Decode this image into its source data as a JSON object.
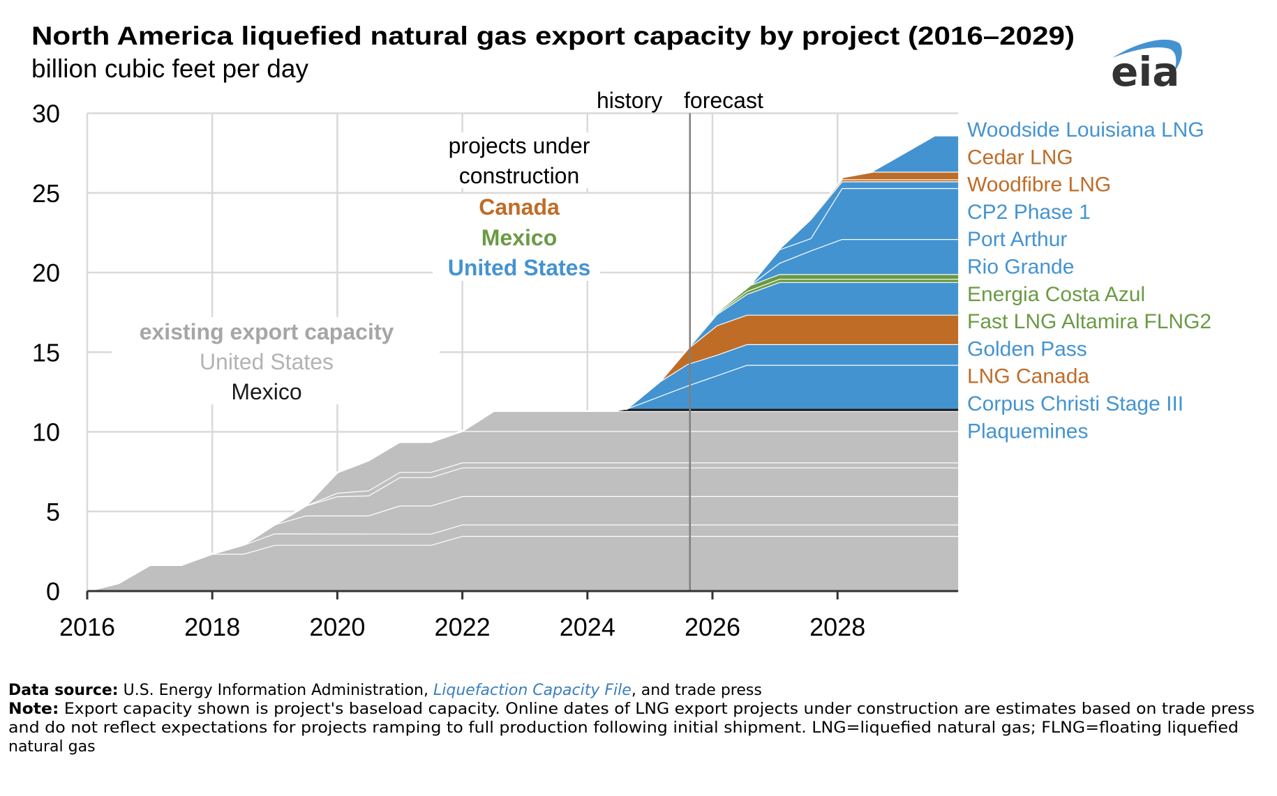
{
  "header": {
    "title": "North America liquefied natural gas export capacity by project (2016–2029)",
    "subtitle": "billion cubic feet per day",
    "logo": "eia"
  },
  "annotations": {
    "history": "history",
    "forecast": "forecast",
    "under_construction_line1": "projects under",
    "under_construction_line2": "construction",
    "canada": "Canada",
    "mexico": "Mexico",
    "united_states": "United States",
    "existing_line1": "existing export capacity",
    "existing_us": "United States",
    "existing_mexico": "Mexico"
  },
  "footer": {
    "source_label": "Data source:",
    "source_text_1": " U.S. Energy Information Administration, ",
    "source_link": "Liquefaction Capacity File",
    "source_text_2": ", and trade press",
    "note_label": "Note:",
    "note_line1": " Export capacity shown is project's baseload capacity. Online dates of LNG export projects under construction are estimates based on trade press",
    "note_line2": "and do not reflect expectations for projects ramping to full production following initial shipment. LNG=liquefied natural gas; FLNG=floating liquefied",
    "note_line3": "natural gas"
  },
  "colors": {
    "existing_us": "#bfbfbf",
    "existing_mexico": "#1a1a1a",
    "united_states": "#4493d1",
    "canada": "#bf6c27",
    "mexico": "#6a9a44",
    "existing_label": "#a6a6a6",
    "existing_us_label": "#b3b3b3"
  },
  "chart_data": {
    "type": "area",
    "stacked": true,
    "title": "North America liquefied natural gas export capacity by project (2016–2029)",
    "ylabel": "billion cubic feet per day",
    "xlabel": "",
    "xlim": [
      2016,
      2029.93
    ],
    "ylim": [
      0,
      30
    ],
    "x_ticks": [
      2016,
      2018,
      2020,
      2022,
      2024,
      2026,
      2028
    ],
    "x_tick_labels": [
      "2016",
      "2018",
      "2020",
      "2022",
      "2024",
      "2026",
      "2028"
    ],
    "y_ticks": [
      0,
      5,
      10,
      15,
      20,
      25,
      30
    ],
    "y_tick_labels": [
      "0",
      "5",
      "10",
      "15",
      "20",
      "25",
      "30"
    ],
    "grid": true,
    "history_forecast_divider_year": 2025.64,
    "value_note": "series points give cumulative stacked top (bcf/d) at each year",
    "series": [
      {
        "name": "Existing US 1",
        "group": "existing_us",
        "legend": false,
        "top": [
          [
            2016,
            0
          ],
          [
            2016.5,
            0.49
          ],
          [
            2017,
            1.63
          ],
          [
            2017.5,
            1.63
          ],
          [
            2018,
            2.34
          ],
          [
            2018.5,
            2.34
          ],
          [
            2019,
            2.9
          ],
          [
            2021.5,
            2.9
          ],
          [
            2022,
            3.46
          ],
          [
            2029.93,
            3.46
          ]
        ]
      },
      {
        "name": "Existing US 2",
        "group": "existing_us",
        "legend": false,
        "top": [
          [
            2018,
            2.34
          ],
          [
            2018.5,
            2.9
          ],
          [
            2019,
            3.62
          ],
          [
            2021.5,
            3.6
          ],
          [
            2022,
            4.18
          ],
          [
            2029.93,
            4.18
          ]
        ]
      },
      {
        "name": "Existing US 3",
        "group": "existing_us",
        "legend": false,
        "top": [
          [
            2018.5,
            2.9
          ],
          [
            2019,
            4.18
          ],
          [
            2019.5,
            4.75
          ],
          [
            2020.5,
            4.75
          ],
          [
            2021,
            5.37
          ],
          [
            2021.5,
            5.37
          ],
          [
            2022,
            5.96
          ],
          [
            2029.93,
            5.96
          ]
        ]
      },
      {
        "name": "Existing US 4",
        "group": "existing_us",
        "legend": false,
        "top": [
          [
            2019,
            4.18
          ],
          [
            2019.5,
            5.37
          ],
          [
            2020,
            5.95
          ],
          [
            2020.5,
            6.0
          ],
          [
            2021,
            7.15
          ],
          [
            2021.5,
            7.15
          ],
          [
            2022,
            7.76
          ],
          [
            2029.93,
            7.76
          ]
        ]
      },
      {
        "name": "Existing US 5",
        "group": "existing_us",
        "legend": false,
        "top": [
          [
            2019.5,
            5.37
          ],
          [
            2020,
            6.17
          ],
          [
            2020.5,
            6.32
          ],
          [
            2021,
            7.48
          ],
          [
            2021.5,
            7.48
          ],
          [
            2022,
            8.08
          ],
          [
            2029.93,
            8.08
          ]
        ]
      },
      {
        "name": "Existing US 6",
        "group": "existing_us",
        "legend": false,
        "top": [
          [
            2019.5,
            5.37
          ],
          [
            2020,
            7.45
          ],
          [
            2020.5,
            8.2
          ],
          [
            2021,
            9.37
          ],
          [
            2021.5,
            9.37
          ],
          [
            2022,
            10.05
          ],
          [
            2029.93,
            10.05
          ]
        ]
      },
      {
        "name": "Existing US 7",
        "group": "existing_us",
        "legend": false,
        "top": [
          [
            2022,
            10.05
          ],
          [
            2022.5,
            11.3
          ],
          [
            2029.93,
            11.3
          ]
        ]
      },
      {
        "name": "Existing Mexico",
        "group": "existing_mexico",
        "legend": false,
        "top": [
          [
            2024.4,
            11.3
          ],
          [
            2024.6,
            11.45
          ],
          [
            2029.93,
            11.45
          ]
        ]
      },
      {
        "name": "Plaquemines",
        "group": "united_states",
        "legend": true,
        "top": [
          [
            2024.63,
            11.45
          ],
          [
            2025.63,
            12.94
          ],
          [
            2026.55,
            14.2
          ],
          [
            2029.93,
            14.2
          ]
        ]
      },
      {
        "name": "Corpus Christi Stage III",
        "group": "united_states",
        "legend": true,
        "top": [
          [
            2024.63,
            11.45
          ],
          [
            2025.16,
            13.16
          ],
          [
            2025.6,
            14.25
          ],
          [
            2026.07,
            14.83
          ],
          [
            2026.55,
            15.5
          ],
          [
            2029.93,
            15.5
          ]
        ]
      },
      {
        "name": "LNG Canada",
        "group": "canada",
        "legend": true,
        "top": [
          [
            2025.16,
            13.16
          ],
          [
            2025.6,
            15.2
          ],
          [
            2026.07,
            16.68
          ],
          [
            2026.55,
            17.35
          ],
          [
            2029.93,
            17.35
          ]
        ]
      },
      {
        "name": "Golden Pass",
        "group": "united_states",
        "legend": true,
        "top": [
          [
            2025.6,
            15.2
          ],
          [
            2026.07,
            17.38
          ],
          [
            2026.55,
            18.65
          ],
          [
            2027.07,
            19.4
          ],
          [
            2029.93,
            19.4
          ]
        ]
      },
      {
        "name": "Fast LNG Altamira FLNG2",
        "group": "mexico",
        "legend": true,
        "top": [
          [
            2025.65,
            15.25
          ],
          [
            2026.07,
            17.45
          ],
          [
            2026.55,
            18.83
          ],
          [
            2027.07,
            19.6
          ],
          [
            2029.93,
            19.6
          ]
        ]
      },
      {
        "name": "Energia Costa Azul",
        "group": "mexico",
        "legend": true,
        "top": [
          [
            2025.65,
            15.25
          ],
          [
            2026.07,
            17.52
          ],
          [
            2026.6,
            19.2
          ],
          [
            2027.07,
            19.9
          ],
          [
            2029.93,
            19.9
          ]
        ]
      },
      {
        "name": "Rio Grande",
        "group": "united_states",
        "legend": true,
        "top": [
          [
            2026.6,
            19.2
          ],
          [
            2027.07,
            20.6
          ],
          [
            2027.57,
            21.38
          ],
          [
            2028.07,
            22.1
          ],
          [
            2029.93,
            22.1
          ]
        ]
      },
      {
        "name": "Port Arthur",
        "group": "united_states",
        "legend": true,
        "top": [
          [
            2026.65,
            19.45
          ],
          [
            2027.07,
            21.45
          ],
          [
            2027.57,
            22.15
          ],
          [
            2028.07,
            25.3
          ],
          [
            2029.93,
            25.3
          ]
        ]
      },
      {
        "name": "CP2 Phase 1",
        "group": "united_states",
        "legend": true,
        "top": [
          [
            2027.07,
            21.5
          ],
          [
            2027.57,
            23.34
          ],
          [
            2028.07,
            25.72
          ],
          [
            2029.93,
            25.72
          ]
        ]
      },
      {
        "name": "Woodfibre LNG",
        "group": "canada",
        "legend": true,
        "top": [
          [
            2027.57,
            23.4
          ],
          [
            2028.07,
            25.85
          ],
          [
            2029.93,
            25.85
          ]
        ]
      },
      {
        "name": "Cedar LNG",
        "group": "canada",
        "legend": true,
        "top": [
          [
            2028.07,
            25.97
          ],
          [
            2028.57,
            26.33
          ],
          [
            2029.93,
            26.33
          ]
        ]
      },
      {
        "name": "Woodside Louisiana LNG",
        "group": "united_states",
        "legend": true,
        "top": [
          [
            2028.57,
            26.33
          ],
          [
            2029.56,
            28.55
          ],
          [
            2029.93,
            28.55
          ]
        ]
      }
    ],
    "legend_order_top_to_bottom": [
      "Woodside Louisiana LNG",
      "Cedar LNG",
      "Woodfibre LNG",
      "CP2 Phase 1",
      "Port Arthur",
      "Rio Grande",
      "Energia Costa Azul",
      "Fast LNG Altamira FLNG2",
      "Golden Pass",
      "LNG Canada",
      "Corpus Christi Stage III",
      "Plaquemines"
    ],
    "legend_placement": "right"
  }
}
